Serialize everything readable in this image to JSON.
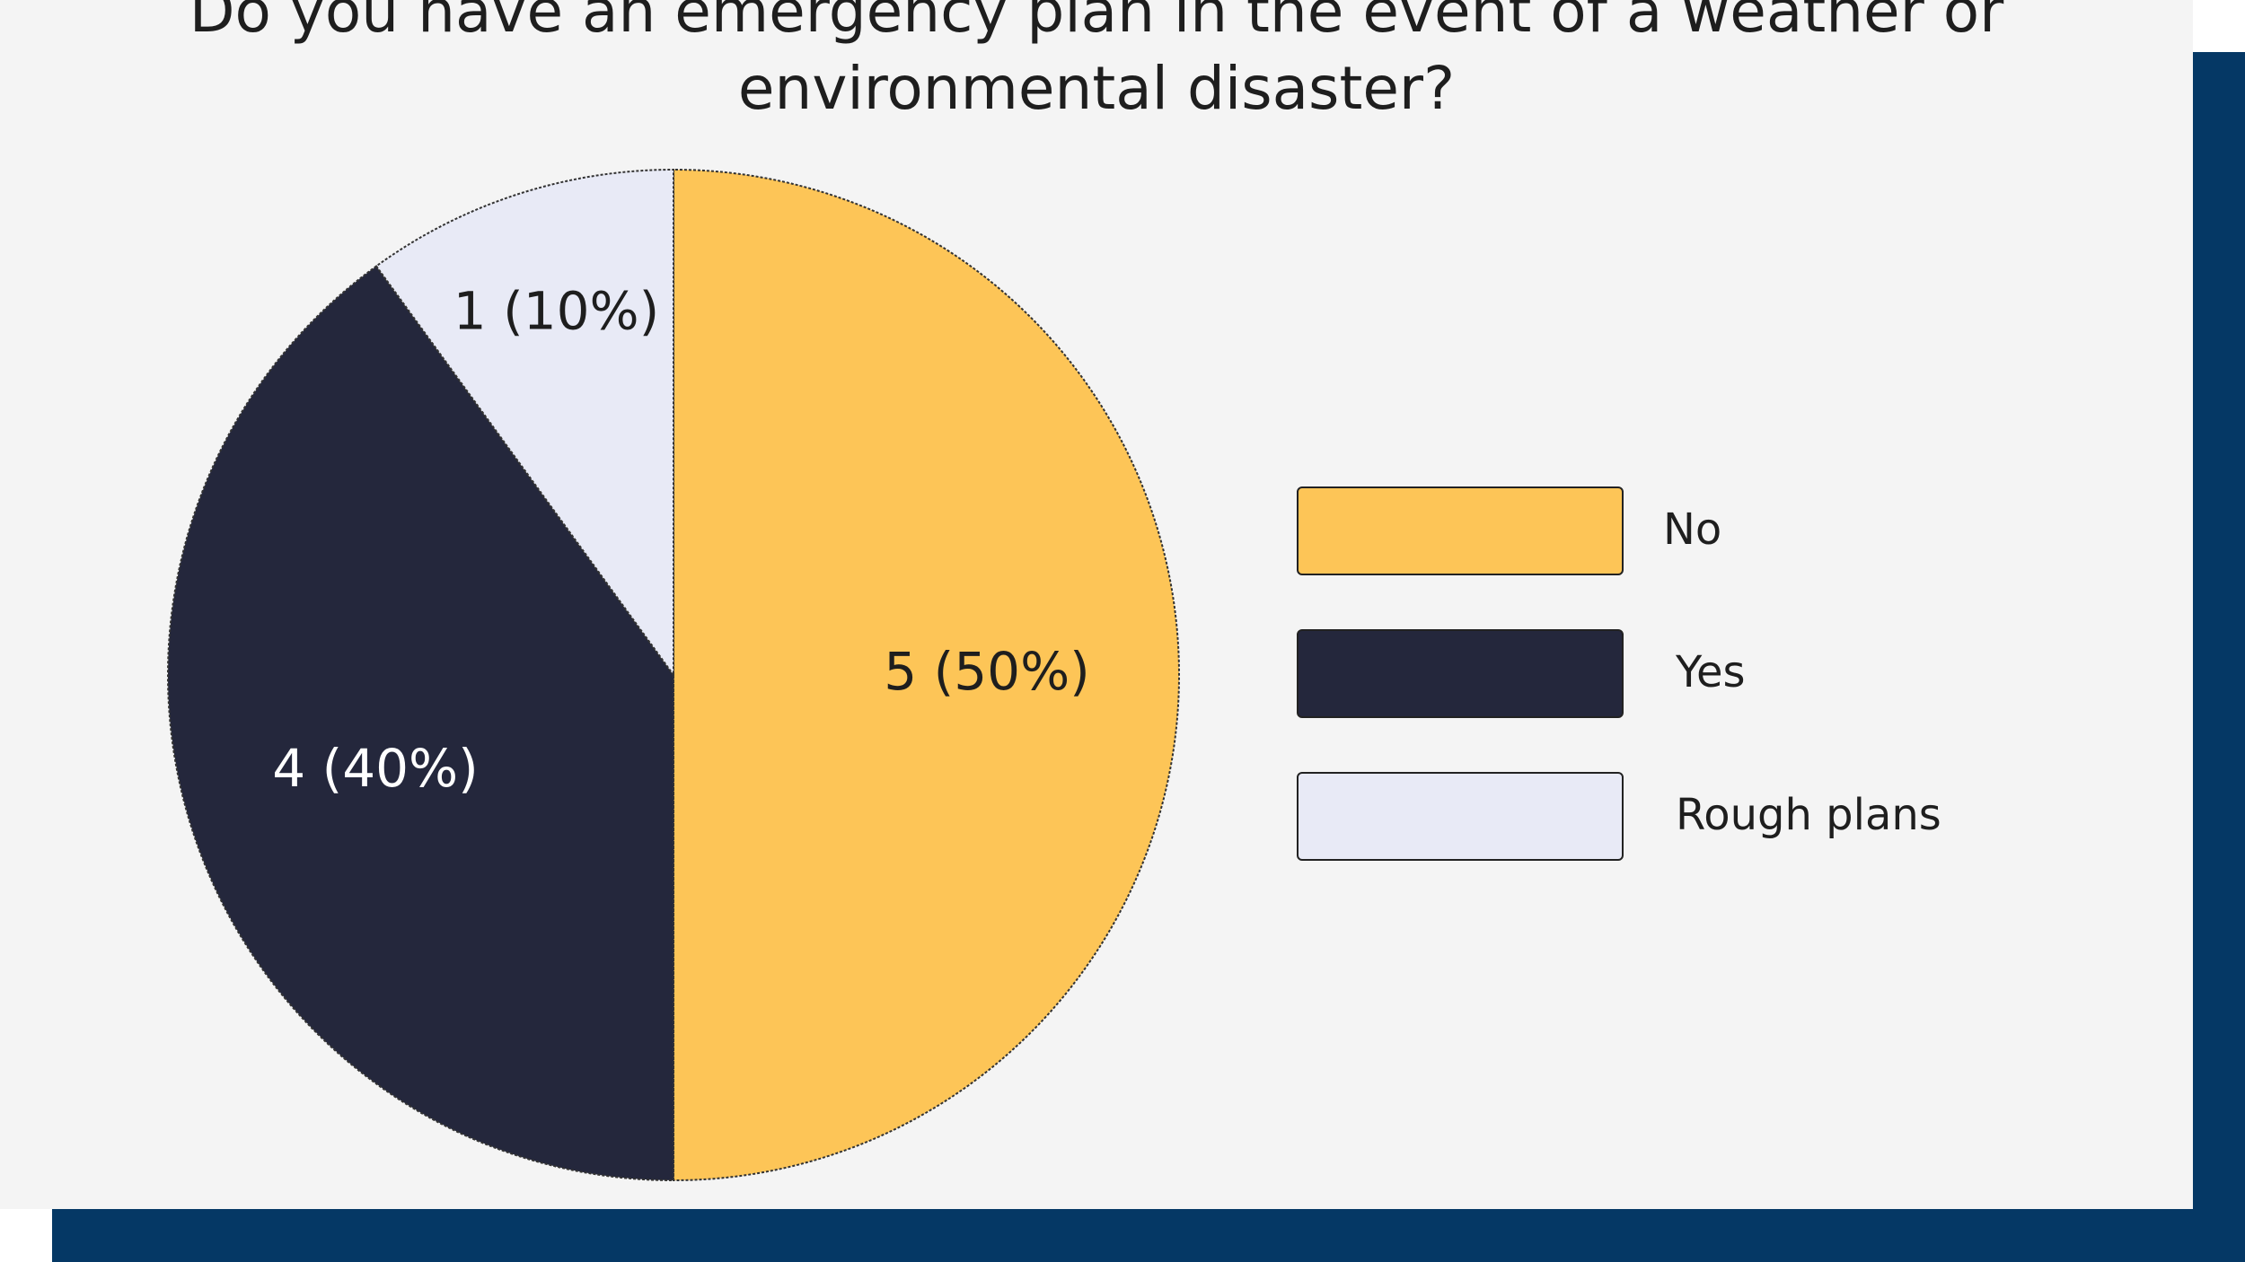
{
  "colors": {
    "background_band": "#053865",
    "card": "#f4f4f4"
  },
  "chart_data": {
    "type": "pie",
    "title": "Do you have an emergency plan in the event of a weather or environmental disaster?",
    "legend_position": "right",
    "slices": [
      {
        "name": "No",
        "value": 5,
        "percent": 50,
        "label": "5 (50%)",
        "color": "#fdc557",
        "text_color": "#1e1e1e"
      },
      {
        "name": "Yes",
        "value": 4,
        "percent": 40,
        "label": "4 (40%)",
        "color": "#24273c",
        "text_color": "#ffffff"
      },
      {
        "name": "Rough plans",
        "value": 1,
        "percent": 10,
        "label": "1 (10%)",
        "color": "#e8eaf6",
        "text_color": "#1e1e1e"
      }
    ]
  }
}
